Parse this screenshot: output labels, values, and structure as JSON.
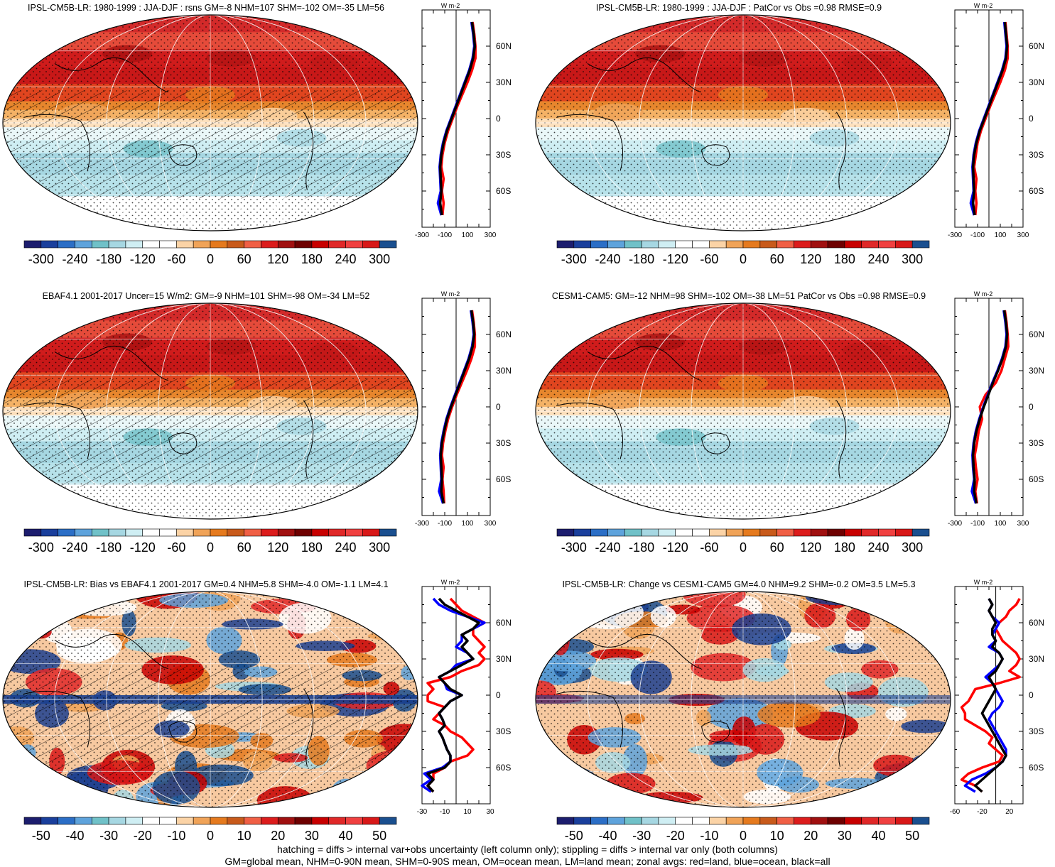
{
  "palette_main": [
    "#1c1d6e",
    "#1a3f9c",
    "#2b6ec6",
    "#5ea3dc",
    "#70c1c8",
    "#a6d7e2",
    "#cfeef3",
    "#ffffff",
    "#ffffff",
    "#fbd3a6",
    "#f0a358",
    "#e57a1e",
    "#c85a1b",
    "#f05f45",
    "#dc1c1c",
    "#a01010",
    "#6e0000",
    "#c80000",
    "#e02828",
    "#f04040",
    "#d81818",
    "#1a4f8f"
  ],
  "palette_diff": [
    "#1c1d6e",
    "#1a3f9c",
    "#2b6ec6",
    "#5ea3dc",
    "#70c1c8",
    "#a6d7e2",
    "#cfeef3",
    "#ffffff",
    "#ffffff",
    "#fbd3a6",
    "#f0a358",
    "#e57a1e",
    "#c85a1b",
    "#f05f45",
    "#dc1c1c",
    "#a01010",
    "#6e0000",
    "#c80000",
    "#e02828",
    "#f04040",
    "#d81818",
    "#1a4f8f"
  ],
  "line_colors": {
    "land": "#ff0000",
    "ocean": "#0000ff",
    "all": "#000000"
  },
  "chart_data": [
    {
      "type": "heatmap",
      "panel": "top-left",
      "title": "IPSL-CM5B-LR: 1980-1999 : JJA-DJF : rsns GM=-8 NHM=107 SHM=-102 OM=-35 LM=56",
      "colorbar": {
        "labels": [
          "-300",
          "-240",
          "-180",
          "-120",
          "-60",
          "0",
          "60",
          "120",
          "180",
          "240",
          "300"
        ],
        "range": [
          -300,
          300
        ]
      },
      "zonal": {
        "unit": "W m-2",
        "x_ticks": [
          "-300",
          "-100",
          "100",
          "300"
        ],
        "xlim": [
          -300,
          300
        ],
        "lat_ticks": [
          "60N",
          "30N",
          "0",
          "30S",
          "60S"
        ],
        "lat": [
          80,
          70,
          60,
          50,
          40,
          30,
          20,
          10,
          0,
          -10,
          -20,
          -30,
          -40,
          -50,
          -60,
          -70,
          -80
        ],
        "all": [
          140,
          155,
          165,
          150,
          120,
          80,
          40,
          0,
          -40,
          -80,
          -110,
          -130,
          -140,
          -135,
          -130,
          -140,
          -125
        ],
        "ocean": [
          135,
          150,
          160,
          145,
          115,
          75,
          35,
          -5,
          -45,
          -85,
          -115,
          -135,
          -145,
          -140,
          -135,
          -160,
          -130
        ],
        "land": [
          145,
          160,
          170,
          170,
          140,
          100,
          55,
          10,
          -30,
          -70,
          -100,
          -120,
          -130,
          -110,
          -125,
          -110,
          -120
        ]
      }
    },
    {
      "type": "heatmap",
      "panel": "top-right",
      "title": "IPSL-CM5B-LR: 1980-1999 : JJA-DJF : PatCor vs Obs =0.98 RMSE=0.9",
      "colorbar": {
        "labels": [
          "-300",
          "-240",
          "-180",
          "-120",
          "-60",
          "0",
          "60",
          "120",
          "180",
          "240",
          "300"
        ],
        "range": [
          -300,
          300
        ]
      },
      "zonal": {
        "unit": "W m-2",
        "x_ticks": [
          "-300",
          "-100",
          "100",
          "300"
        ],
        "xlim": [
          -300,
          300
        ],
        "lat_ticks": [
          "60N",
          "30N",
          "0",
          "30S",
          "60S"
        ],
        "lat": [
          80,
          70,
          60,
          50,
          40,
          30,
          20,
          10,
          0,
          -10,
          -20,
          -30,
          -40,
          -50,
          -60,
          -70,
          -80
        ],
        "all": [
          140,
          150,
          160,
          150,
          120,
          80,
          40,
          0,
          -40,
          -80,
          -110,
          -130,
          -140,
          -135,
          -130,
          -140,
          -125
        ],
        "ocean": [
          135,
          145,
          155,
          145,
          115,
          75,
          35,
          -5,
          -45,
          -85,
          -115,
          -135,
          -145,
          -140,
          -135,
          -160,
          -130
        ],
        "land": [
          145,
          155,
          165,
          165,
          140,
          100,
          55,
          10,
          -30,
          -70,
          -100,
          -115,
          -130,
          -110,
          -120,
          -110,
          -120
        ]
      }
    },
    {
      "type": "heatmap",
      "panel": "middle-left",
      "title": "EBAF4.1 2001-2017 Uncer=15 W/m2: GM=-9 NHM=101 SHM=-98 OM=-34 LM=52",
      "colorbar": {
        "labels": [
          "-300",
          "-240",
          "-180",
          "-120",
          "-60",
          "0",
          "60",
          "120",
          "180",
          "240",
          "300"
        ],
        "range": [
          -300,
          300
        ]
      },
      "zonal": {
        "unit": "W m-2",
        "x_ticks": [
          "-300",
          "-100",
          "100",
          "300"
        ],
        "xlim": [
          -300,
          300
        ],
        "lat_ticks": [
          "60N",
          "30N",
          "0",
          "30S",
          "60S"
        ],
        "lat": [
          80,
          70,
          60,
          50,
          40,
          30,
          20,
          10,
          0,
          -10,
          -20,
          -30,
          -40,
          -50,
          -60,
          -70,
          -80
        ],
        "all": [
          135,
          150,
          160,
          145,
          115,
          75,
          35,
          -5,
          -45,
          -80,
          -105,
          -125,
          -135,
          -130,
          -125,
          -130,
          -110
        ],
        "ocean": [
          130,
          145,
          155,
          140,
          110,
          70,
          30,
          -10,
          -50,
          -85,
          -110,
          -130,
          -140,
          -135,
          -130,
          -150,
          -115
        ],
        "land": [
          140,
          155,
          165,
          165,
          135,
          95,
          50,
          5,
          -35,
          -70,
          -95,
          -115,
          -125,
          -110,
          -120,
          -110,
          -105
        ]
      }
    },
    {
      "type": "heatmap",
      "panel": "middle-right",
      "title": "CESM1-CAM5: GM=-12 NHM=98 SHM=-102 OM=-38 LM=51 PatCor vs Obs =0.98 RMSE=0.9",
      "colorbar": {
        "labels": [
          "-300",
          "-240",
          "-180",
          "-120",
          "-60",
          "0",
          "60",
          "120",
          "180",
          "240",
          "300"
        ],
        "range": [
          -300,
          300
        ]
      },
      "zonal": {
        "unit": "W m-2",
        "x_ticks": [
          "-300",
          "-100",
          "100",
          "300"
        ],
        "xlim": [
          -300,
          300
        ],
        "lat_ticks": [
          "60N",
          "30N",
          "0",
          "30S",
          "60S"
        ],
        "lat": [
          80,
          70,
          60,
          50,
          40,
          30,
          20,
          10,
          0,
          -10,
          -20,
          -30,
          -40,
          -50,
          -60,
          -70,
          -80
        ],
        "all": [
          135,
          150,
          160,
          150,
          120,
          80,
          35,
          -5,
          -45,
          -80,
          -110,
          -130,
          -140,
          -135,
          -125,
          -130,
          -110
        ],
        "ocean": [
          130,
          145,
          155,
          145,
          115,
          75,
          30,
          -10,
          -50,
          -85,
          -115,
          -135,
          -145,
          -140,
          -130,
          -150,
          -115
        ],
        "land": [
          140,
          155,
          165,
          170,
          140,
          110,
          60,
          -30,
          -80,
          -60,
          -90,
          -105,
          -125,
          -115,
          -100,
          -120,
          -105
        ]
      }
    },
    {
      "type": "heatmap",
      "panel": "bottom-left",
      "title": "IPSL-CM5B-LR: Bias vs EBAF4.1 2001-2017 GM=0.4 NHM=5.8 SHM=-4.0 OM=-1.1 LM=4.1",
      "colorbar": {
        "labels": [
          "-50",
          "-40",
          "-30",
          "-20",
          "-10",
          "0",
          "10",
          "20",
          "30",
          "40",
          "50"
        ],
        "range": [
          -50,
          50
        ]
      },
      "zonal": {
        "unit": "W m-2",
        "x_ticks": [
          "-30",
          "-10",
          "10",
          "30"
        ],
        "xlim": [
          -30,
          30
        ],
        "lat_ticks": [
          "60N",
          "30N",
          "0",
          "30S",
          "60S"
        ],
        "lat": [
          80,
          75,
          70,
          65,
          60,
          55,
          50,
          45,
          40,
          35,
          30,
          25,
          20,
          15,
          10,
          5,
          0,
          -5,
          -10,
          -15,
          -20,
          -25,
          -30,
          -35,
          -40,
          -45,
          -50,
          -55,
          -60,
          -65,
          -70,
          -75,
          -80
        ],
        "all": [
          -15,
          -10,
          0,
          10,
          20,
          15,
          5,
          10,
          5,
          10,
          15,
          5,
          -5,
          -15,
          -10,
          -5,
          5,
          -5,
          -10,
          -15,
          -12,
          -10,
          -15,
          -12,
          -10,
          -8,
          -5,
          -5,
          -10,
          -25,
          -20,
          -25,
          -20
        ],
        "ocean": [
          -20,
          -15,
          -5,
          10,
          25,
          15,
          5,
          5,
          0,
          10,
          15,
          0,
          -5,
          -15,
          -10,
          -8,
          5,
          -5,
          -10,
          -15,
          -12,
          -10,
          -15,
          -12,
          -10,
          -8,
          -5,
          -5,
          -12,
          -28,
          -22,
          -30,
          -22
        ],
        "land": [
          -5,
          0,
          5,
          15,
          25,
          15,
          15,
          20,
          25,
          20,
          25,
          20,
          5,
          -5,
          -25,
          -20,
          -25,
          -25,
          -10,
          -15,
          -20,
          -10,
          -5,
          5,
          10,
          15,
          10,
          -5,
          -10,
          -20,
          -20,
          -25,
          -20
        ]
      }
    },
    {
      "type": "heatmap",
      "panel": "bottom-right",
      "title": "IPSL-CM5B-LR: Change vs CESM1-CAM5 GM=4.0 NHM=9.2 SHM=-0.2 OM=3.5 LM=5.3",
      "colorbar": {
        "labels": [
          "-50",
          "-40",
          "-30",
          "-20",
          "-10",
          "0",
          "10",
          "20",
          "30",
          "40",
          "50"
        ],
        "range": [
          -50,
          50
        ]
      },
      "zonal": {
        "unit": "W m-2",
        "x_ticks": [
          "-60",
          "-20",
          "20"
        ],
        "xlim": [
          -60,
          40
        ],
        "lat_ticks": [
          "60N",
          "30N",
          "0",
          "30S",
          "60S"
        ],
        "lat": [
          80,
          75,
          70,
          65,
          60,
          55,
          50,
          45,
          40,
          35,
          30,
          25,
          20,
          15,
          10,
          5,
          0,
          -5,
          -10,
          -15,
          -20,
          -25,
          -30,
          -35,
          -40,
          -45,
          -50,
          -55,
          -60,
          -65,
          -70,
          -75,
          -80
        ],
        "all": [
          -10,
          -5,
          -10,
          -5,
          0,
          -5,
          -5,
          0,
          -5,
          5,
          10,
          5,
          0,
          -10,
          -5,
          0,
          -5,
          -10,
          -15,
          -20,
          -15,
          -10,
          -5,
          0,
          5,
          10,
          15,
          10,
          0,
          -10,
          -20,
          -30,
          -20
        ],
        "ocean": [
          -10,
          -5,
          -10,
          -5,
          5,
          0,
          -5,
          0,
          -10,
          5,
          10,
          5,
          -5,
          -15,
          -5,
          0,
          5,
          10,
          5,
          -5,
          -10,
          -5,
          0,
          5,
          10,
          15,
          15,
          10,
          0,
          -15,
          -35,
          -45,
          -30
        ],
        "land": [
          35,
          30,
          20,
          15,
          5,
          0,
          5,
          10,
          20,
          30,
          35,
          30,
          20,
          35,
          5,
          -30,
          -35,
          -40,
          -50,
          -45,
          -45,
          -30,
          -15,
          -5,
          -10,
          0,
          10,
          5,
          -20,
          -40,
          -50,
          -30,
          -20
        ]
      }
    }
  ],
  "footer": {
    "line1": "hatching = diffs > internal var+obs uncertainty (left column only); stippling = diffs > internal var only (both columns)",
    "line2": "GM=global mean, NHM=0-90N mean, SHM=0-90S mean, OM=ocean mean, LM=land mean; zonal avgs: red=land, blue=ocean, black=all"
  }
}
